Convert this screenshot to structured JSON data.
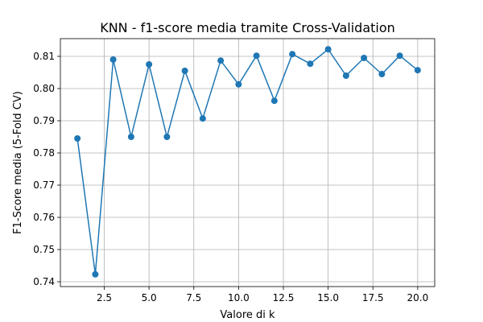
{
  "chart_data": {
    "type": "line",
    "title": "KNN - f1-score media tramite Cross-Validation",
    "xlabel": "Valore di k",
    "ylabel": "F1-Score media (5-Fold CV)",
    "xlim": [
      0.05,
      20.95
    ],
    "ylim": [
      0.7385,
      0.8155
    ],
    "xticks": [
      2.5,
      5.0,
      7.5,
      10.0,
      12.5,
      15.0,
      17.5,
      20.0
    ],
    "xtick_labels": [
      "2.5",
      "5.0",
      "7.5",
      "10.0",
      "12.5",
      "15.0",
      "17.5",
      "20.0"
    ],
    "yticks": [
      0.74,
      0.75,
      0.76,
      0.77,
      0.78,
      0.79,
      0.8,
      0.81
    ],
    "ytick_labels": [
      "0.74",
      "0.75",
      "0.76",
      "0.77",
      "0.78",
      "0.79",
      "0.80",
      "0.81"
    ],
    "grid": true,
    "color": "#1f77b4",
    "marker": "circle",
    "series": [
      {
        "x": [
          1,
          2,
          3,
          4,
          5,
          6,
          7,
          8,
          9,
          10,
          11,
          12,
          13,
          14,
          15,
          16,
          17,
          18,
          19,
          20
        ],
        "values": [
          0.7845,
          0.7423,
          0.809,
          0.785,
          0.8075,
          0.785,
          0.8055,
          0.7907,
          0.8087,
          0.8013,
          0.8102,
          0.7962,
          0.8107,
          0.8077,
          0.8122,
          0.804,
          0.8095,
          0.8045,
          0.8102,
          0.8057
        ]
      }
    ]
  }
}
